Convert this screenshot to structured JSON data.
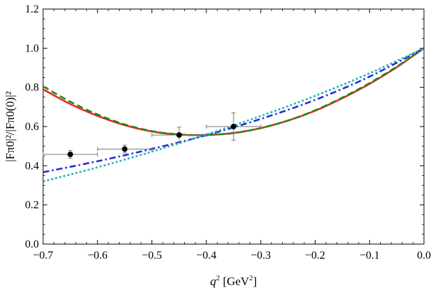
{
  "chart_data": {
    "type": "line",
    "xlabel": {
      "base": "q",
      "sup": "2",
      "unit_open": " [GeV",
      "unit_sup": "2",
      "unit_close": "]"
    },
    "ylabel": "|Fπ0|²/|Fπ0(0)|²",
    "xlim": [
      -0.7,
      0.0
    ],
    "ylim": [
      0.0,
      1.2
    ],
    "x_ticks": [
      -0.7,
      -0.6,
      -0.5,
      -0.4,
      -0.3,
      -0.2,
      -0.1,
      0.0
    ],
    "x_tick_labels": [
      "−0.7",
      "−0.6",
      "−0.5",
      "−0.4",
      "−0.3",
      "−0.2",
      "−0.1",
      "0.0"
    ],
    "y_ticks": [
      0.0,
      0.2,
      0.4,
      0.6,
      0.8,
      1.0,
      1.2
    ],
    "y_tick_labels": [
      "0.0",
      "0.2",
      "0.4",
      "0.6",
      "0.8",
      "1.0",
      "1.2"
    ],
    "grid": false,
    "series": [
      {
        "style": "solid",
        "color": "#e8281e",
        "x": [
          -0.7,
          -0.65,
          -0.6,
          -0.55,
          -0.5,
          -0.45,
          -0.4,
          -0.35,
          -0.3,
          -0.25,
          -0.2,
          -0.15,
          -0.1,
          -0.05,
          0.0
        ],
        "y": [
          0.79,
          0.715,
          0.655,
          0.607,
          0.575,
          0.559,
          0.557,
          0.567,
          0.592,
          0.63,
          0.681,
          0.745,
          0.818,
          0.903,
          1.0
        ]
      },
      {
        "style": "dashed",
        "color": "#1a8c1a",
        "x": [
          -0.7,
          -0.65,
          -0.6,
          -0.55,
          -0.5,
          -0.45,
          -0.4,
          -0.35,
          -0.3,
          -0.25,
          -0.2,
          -0.15,
          -0.1,
          -0.05,
          0.0
        ],
        "y": [
          0.805,
          0.727,
          0.662,
          0.611,
          0.577,
          0.56,
          0.557,
          0.567,
          0.592,
          0.631,
          0.683,
          0.748,
          0.822,
          0.906,
          1.0
        ]
      },
      {
        "style": "dash-dot",
        "color": "#1f2fd6",
        "x": [
          -0.7,
          -0.6,
          -0.5,
          -0.4,
          -0.3,
          -0.2,
          -0.1,
          0.0
        ],
        "y": [
          0.367,
          0.423,
          0.486,
          0.556,
          0.639,
          0.736,
          0.855,
          1.0
        ]
      },
      {
        "style": "dotted",
        "color": "#22b3b8",
        "x": [
          -0.7,
          -0.6,
          -0.5,
          -0.4,
          -0.3,
          -0.2,
          -0.1,
          0.0
        ],
        "y": [
          0.32,
          0.392,
          0.472,
          0.559,
          0.654,
          0.757,
          0.872,
          1.0
        ]
      }
    ],
    "data_points": [
      {
        "x": -0.65,
        "y": 0.458,
        "xerr": 0.05,
        "yerr": 0.02
      },
      {
        "x": -0.55,
        "y": 0.485,
        "xerr": 0.05,
        "yerr": 0.02
      },
      {
        "x": -0.45,
        "y": 0.557,
        "xerr": 0.05,
        "yerr": 0.04
      },
      {
        "x": -0.35,
        "y": 0.6,
        "xerr": 0.05,
        "yerr": 0.07
      }
    ]
  }
}
